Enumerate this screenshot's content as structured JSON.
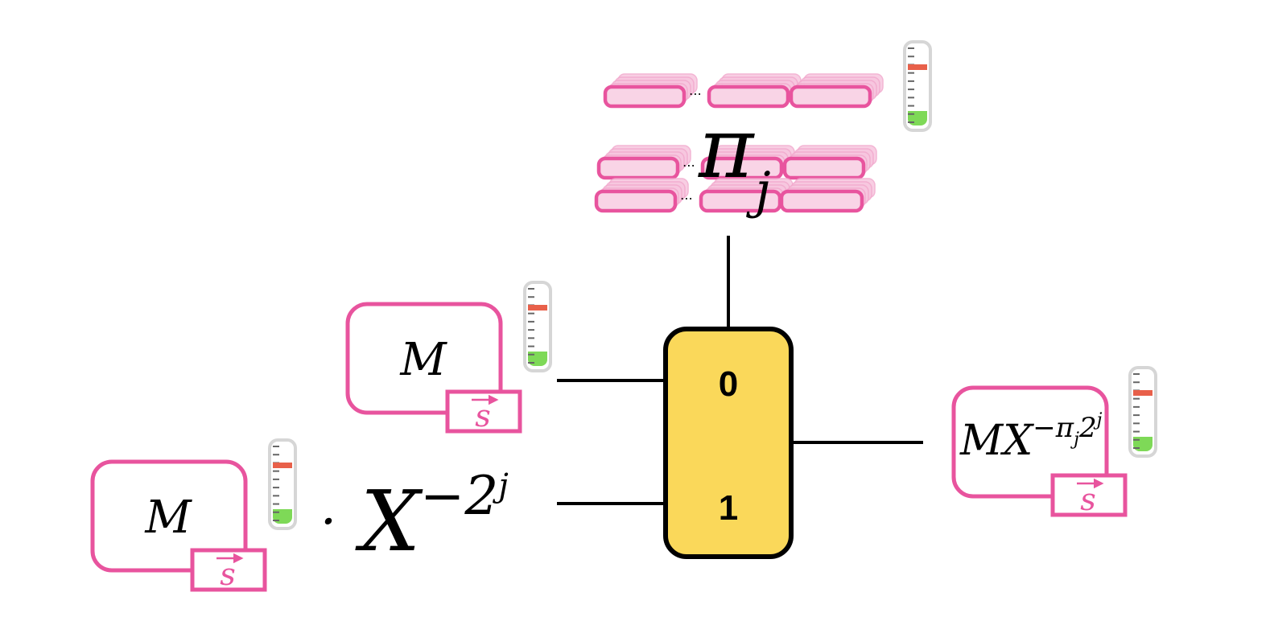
{
  "colors": {
    "pink": "#e8549e",
    "pink_light": "#f7c6df",
    "mux_fill": "#fad85a",
    "wire": "#000000",
    "gauge_frame": "#d6d6d6",
    "gauge_red": "#e8604a",
    "gauge_green": "#7ed957"
  },
  "left_top_ct": {
    "message": "M",
    "key": "s"
  },
  "left_bottom_ct": {
    "message": "M",
    "key": "s",
    "multiplier_dot": "·",
    "base": "X",
    "exponent": "−2",
    "exponent_sup": "j"
  },
  "selector": {
    "symbol": "π",
    "subscript": "j"
  },
  "mux": {
    "input_0": "0",
    "input_1": "1"
  },
  "output_ct": {
    "message": "MX",
    "exp_sign": "−",
    "exp_pi": "π",
    "exp_pi_sub": "j",
    "exp_two": "2",
    "exp_two_sup": "j",
    "key": "s"
  },
  "noise_gauges": [
    {
      "id": "selector",
      "noise_level": 0.75
    },
    {
      "id": "left-top",
      "noise_level": 0.75
    },
    {
      "id": "left-bottom",
      "noise_level": 0.75
    },
    {
      "id": "output",
      "noise_level": 0.75
    }
  ]
}
